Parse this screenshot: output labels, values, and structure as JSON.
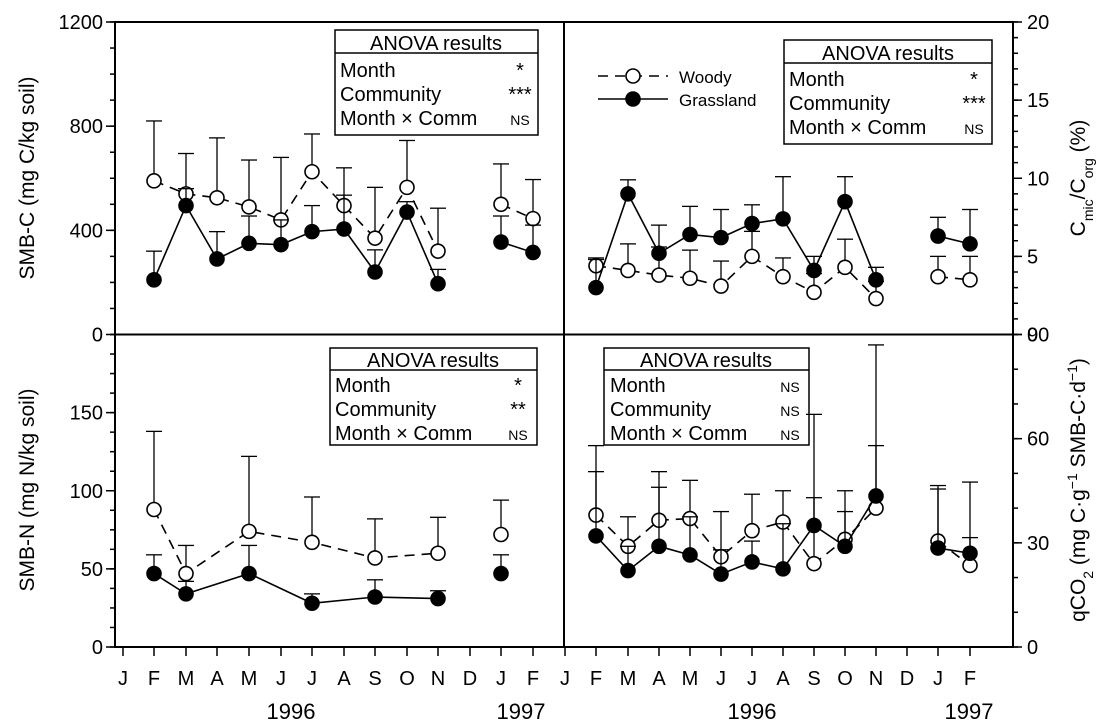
{
  "months": [
    "J",
    "F",
    "M",
    "A",
    "M",
    "J",
    "J",
    "A",
    "S",
    "O",
    "N",
    "D",
    "J",
    "F"
  ],
  "years": [
    "1996",
    "1997"
  ],
  "legend": {
    "woody": "Woody",
    "grassland": "Grassland"
  },
  "anova": {
    "title": "ANOVA results",
    "row_labels": [
      "Month",
      "Community",
      "Month × Comm"
    ],
    "smb_c": [
      "*",
      "***",
      "NS"
    ],
    "cmic": [
      "*",
      "***",
      "NS"
    ],
    "smb_n": [
      "*",
      "**",
      "NS"
    ],
    "qco2": [
      "NS",
      "NS",
      "NS"
    ]
  },
  "chart_data": [
    {
      "type": "line",
      "ylabel": "SMB-C (mg C/kg soil)",
      "ylim": [
        0,
        1200
      ],
      "yticks": [
        "0",
        "400",
        "800",
        "1200"
      ],
      "x": [
        "Feb 1996",
        "Mar 1996",
        "Apr 1996",
        "May 1996",
        "Jun 1996",
        "Jul 1996",
        "Aug 1996",
        "Sep 1996",
        "Oct 1996",
        "Nov 1996",
        "Jan 1997",
        "Feb 1997"
      ],
      "series": [
        {
          "name": "Woody",
          "values": [
            590,
            540,
            525,
            490,
            440,
            625,
            495,
            370,
            565,
            320,
            500,
            445
          ],
          "error": [
            230,
            155,
            230,
            180,
            240,
            145,
            145,
            195,
            180,
            165,
            155,
            150
          ]
        },
        {
          "name": "Grassland",
          "values": [
            210,
            495,
            290,
            350,
            345,
            395,
            405,
            240,
            470,
            195,
            355,
            315
          ],
          "error": [
            110,
            65,
            105,
            105,
            95,
            100,
            130,
            85,
            40,
            55,
            100,
            105
          ]
        }
      ]
    },
    {
      "type": "line",
      "ylabel": "Cmic/Corg (%)",
      "ylim": [
        0,
        20
      ],
      "yticks": [
        "0",
        "5",
        "10",
        "15",
        "20"
      ],
      "x": [
        "Feb 1996",
        "Mar 1996",
        "Apr 1996",
        "May 1996",
        "Jun 1996",
        "Jul 1996",
        "Aug 1996",
        "Sep 1996",
        "Oct 1996",
        "Nov 1996",
        "Jan 1997",
        "Feb 1997"
      ],
      "series": [
        {
          "name": "Woody",
          "values": [
            4.4,
            4.1,
            3.8,
            3.6,
            3.1,
            5.0,
            3.7,
            2.7,
            4.3,
            2.3,
            3.7,
            3.5
          ],
          "error": [
            0.5,
            1.7,
            1.8,
            1.8,
            1.6,
            1.6,
            1.2,
            1.2,
            1.8,
            1.1,
            1.3,
            1.5
          ]
        },
        {
          "name": "Grassland",
          "values": [
            3.0,
            9.0,
            5.2,
            6.4,
            6.2,
            7.1,
            7.4,
            4.1,
            8.5,
            3.5,
            6.3,
            5.8
          ],
          "error": [
            1.8,
            0.9,
            1.8,
            1.8,
            1.8,
            1.2,
            2.7,
            0.9,
            1.6,
            0.8,
            1.2,
            2.2
          ]
        }
      ]
    },
    {
      "type": "line",
      "ylabel": "SMB-N (mg N/kg soil)",
      "ylim": [
        0,
        200
      ],
      "yticks": [
        "0",
        "50",
        "100",
        "150"
      ],
      "x": [
        "Feb 1996",
        "Mar 1996",
        "May 1996",
        "Jul 1996",
        "Sep 1996",
        "Nov 1996",
        "Jan 1997"
      ],
      "series": [
        {
          "name": "Woody",
          "values": [
            88,
            47,
            74,
            67,
            57,
            60,
            72
          ],
          "error": [
            50,
            18,
            48,
            29,
            25,
            23,
            22
          ]
        },
        {
          "name": "Grassland",
          "values": [
            47,
            34,
            47,
            28,
            32,
            31,
            47
          ],
          "error": [
            12,
            8,
            18,
            6,
            11,
            5,
            12
          ]
        }
      ]
    },
    {
      "type": "line",
      "ylabel": "qCO2 (mg C·g−1 SMB-C·d−1)",
      "ylim": [
        0,
        90
      ],
      "yticks": [
        "0",
        "30",
        "60",
        "90"
      ],
      "x": [
        "Feb 1996",
        "Mar 1996",
        "Apr 1996",
        "May 1996",
        "Jun 1996",
        "Jul 1996",
        "Aug 1996",
        "Sep 1996",
        "Oct 1996",
        "Nov 1996",
        "Jan 1997",
        "Feb 1997"
      ],
      "series": [
        {
          "name": "Woody",
          "values": [
            38,
            29,
            36.5,
            37,
            26,
            33.5,
            36,
            24,
            31,
            40,
            30.5,
            23.5
          ],
          "error": [
            12.5,
            8.5,
            14,
            11,
            13,
            10.5,
            9,
            19,
            14,
            18,
            16,
            8
          ]
        },
        {
          "name": "Grassland",
          "values": [
            32,
            22,
            29,
            26.5,
            21,
            24.5,
            22.5,
            35,
            29,
            43.5,
            28.5,
            27
          ],
          "error": [
            26,
            7,
            17,
            11,
            7,
            6,
            13,
            32,
            10,
            43.5,
            17,
            20.5
          ]
        }
      ]
    }
  ]
}
